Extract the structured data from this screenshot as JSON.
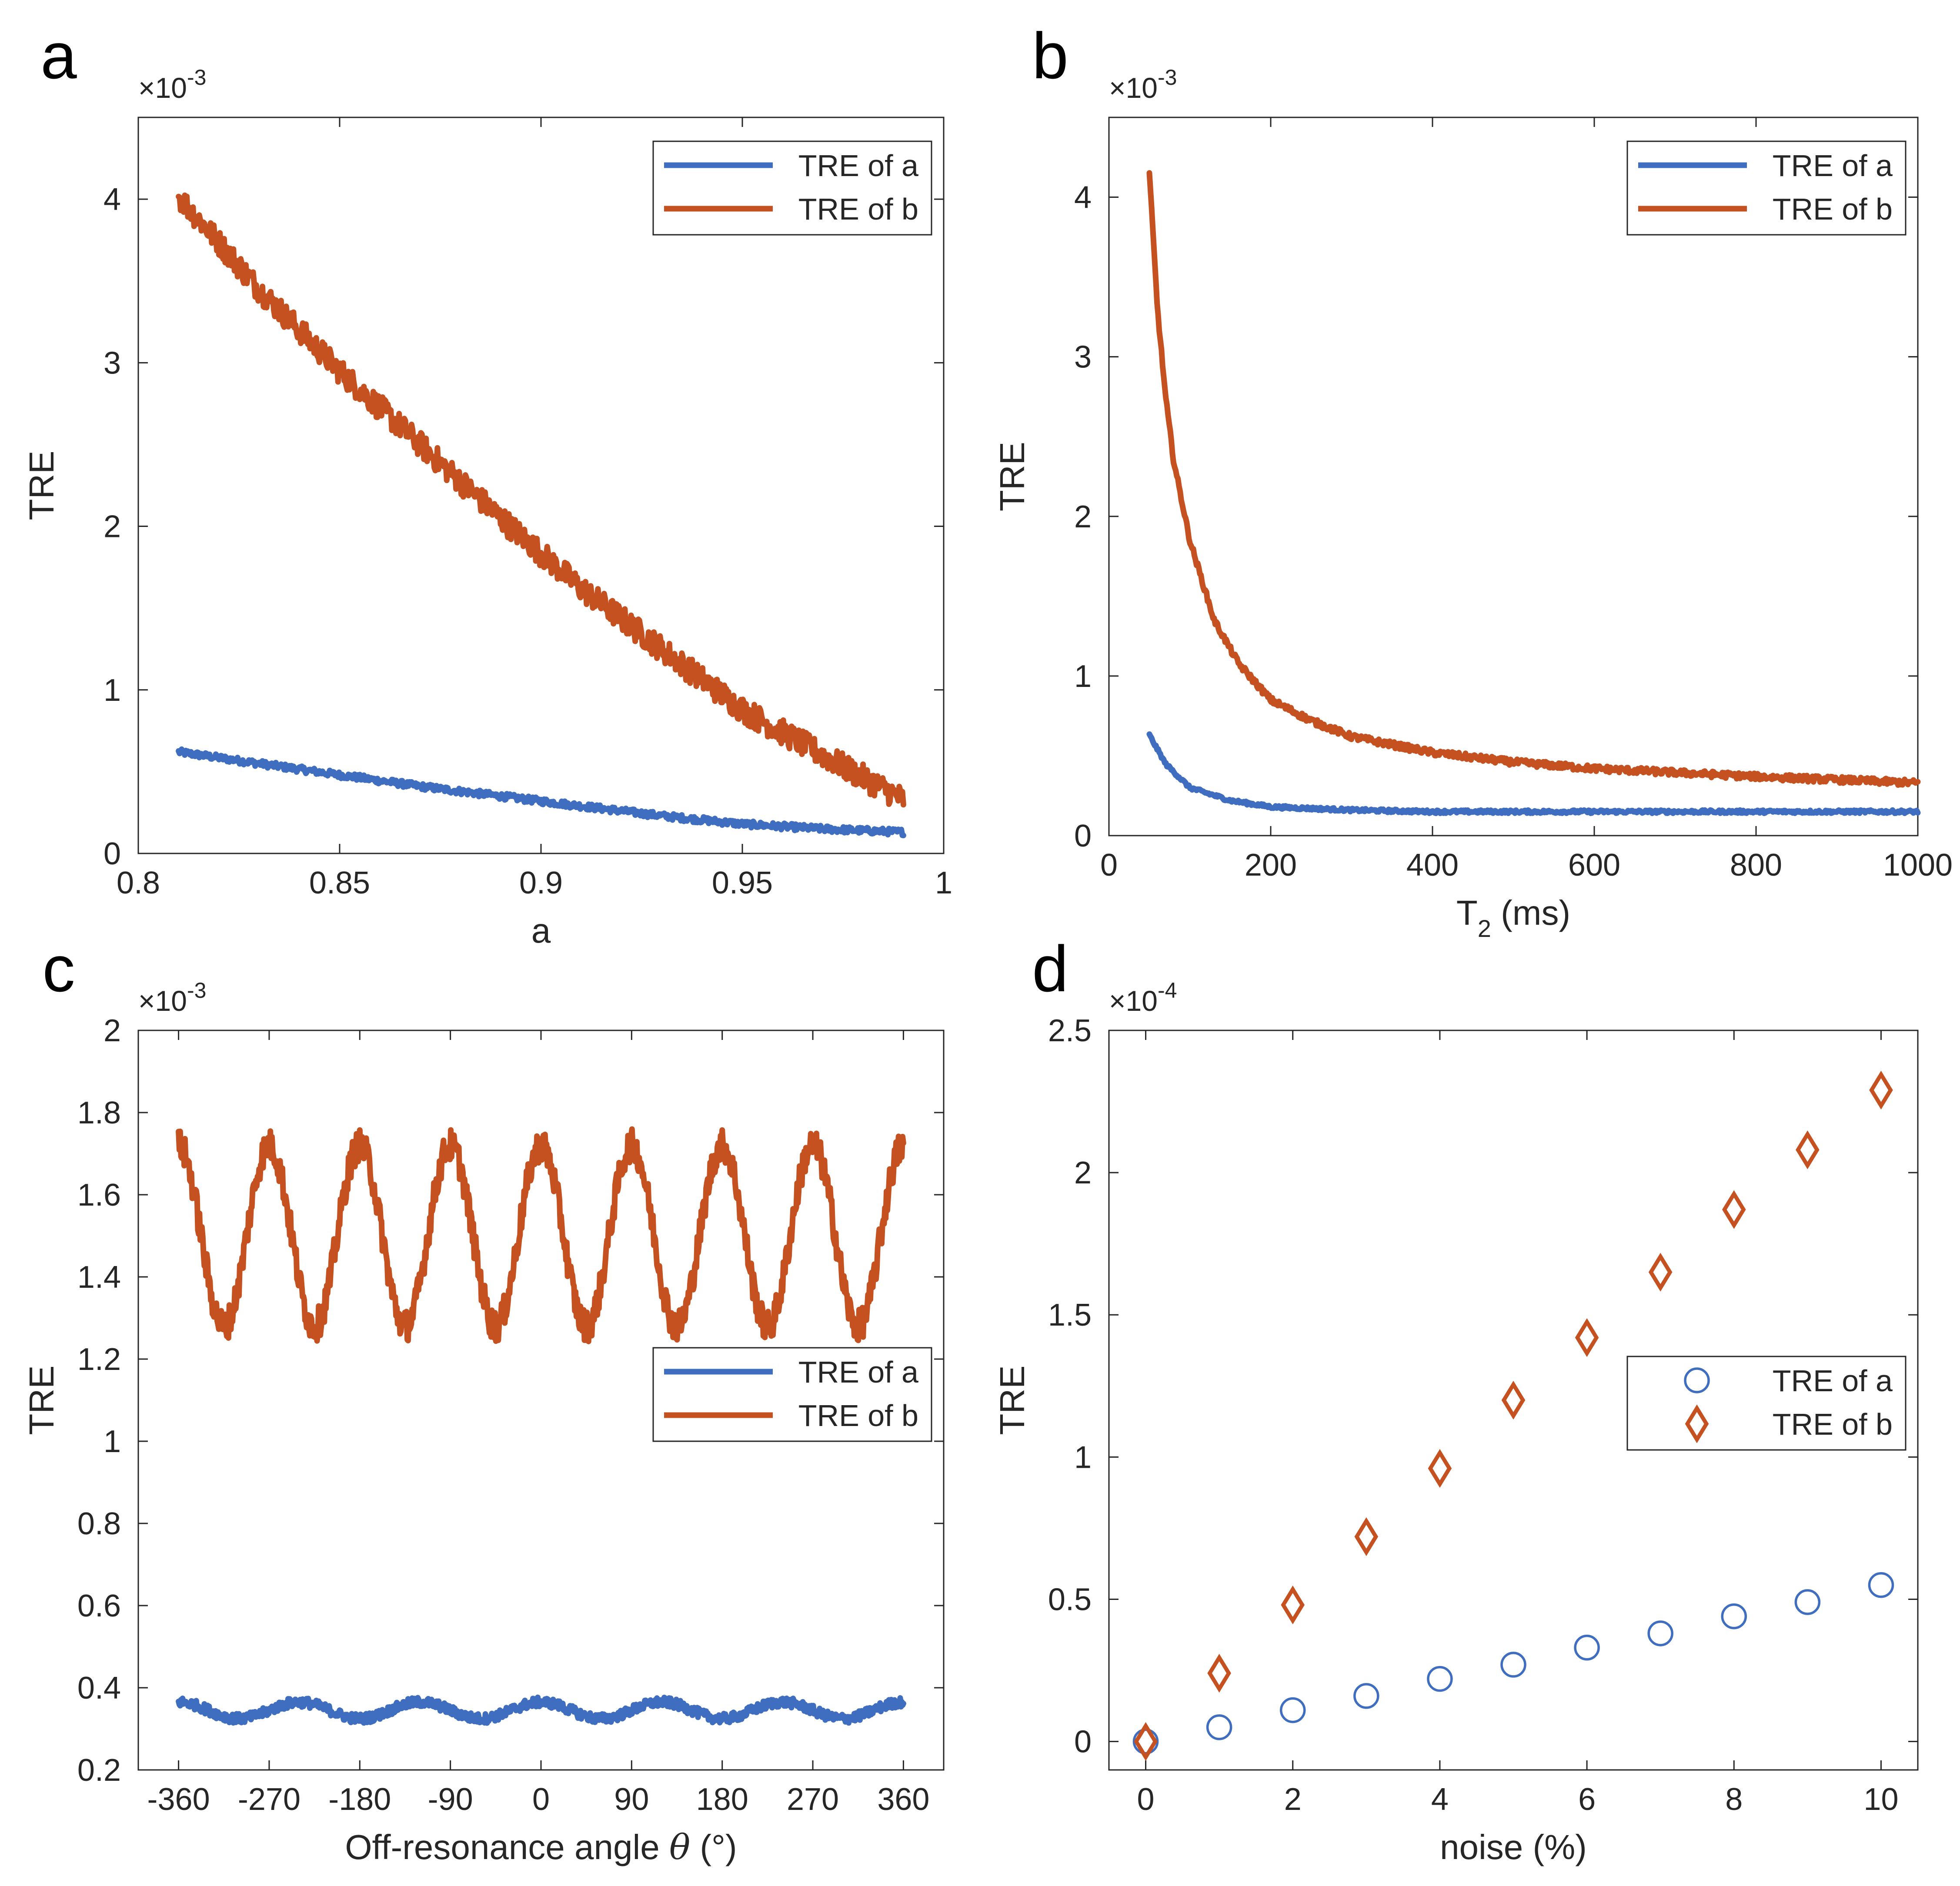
{
  "colors": {
    "series_a": "#3F6DBF",
    "series_b": "#C4511F",
    "axis": "#262626"
  },
  "chart_data": [
    {
      "panel": "a",
      "type": "line",
      "xlabel": "a",
      "ylabel": "TRE",
      "exponent_base": "×10",
      "exponent_power": "-3",
      "xlim": [
        0.8,
        1.0
      ],
      "ylim": [
        0,
        4.5
      ],
      "xticks": [
        0.8,
        0.85,
        0.9,
        0.95,
        1
      ],
      "xtick_labels": [
        "0.8",
        "0.85",
        "0.9",
        "0.95",
        "1"
      ],
      "yticks": [
        0,
        1,
        2,
        3,
        4
      ],
      "ytick_labels": [
        "0",
        "1",
        "2",
        "3",
        "4"
      ],
      "legend_position": "top-right",
      "legend": [
        "TRE of a",
        "TRE of b"
      ],
      "series": [
        {
          "name": "TRE of a",
          "x": [
            0.81,
            0.83,
            0.85,
            0.87,
            0.89,
            0.91,
            0.93,
            0.95,
            0.97,
            0.99
          ],
          "values": [
            0.62,
            0.55,
            0.48,
            0.41,
            0.35,
            0.29,
            0.23,
            0.18,
            0.15,
            0.13
          ],
          "noise": 0.02
        },
        {
          "name": "TRE of b",
          "x": [
            0.81,
            0.83,
            0.85,
            0.87,
            0.89,
            0.91,
            0.93,
            0.95,
            0.97,
            0.99
          ],
          "values": [
            4.02,
            3.45,
            2.95,
            2.5,
            2.05,
            1.62,
            1.25,
            0.88,
            0.6,
            0.33
          ],
          "noise": 0.08
        }
      ]
    },
    {
      "panel": "b",
      "type": "line",
      "xlabel": "T",
      "xlabel_sub": "2",
      "xlabel_suffix": " (ms)",
      "ylabel": "TRE",
      "exponent_base": "×10",
      "exponent_power": "-3",
      "xlim": [
        0,
        1000
      ],
      "ylim": [
        0,
        4.5
      ],
      "xticks": [
        0,
        200,
        400,
        600,
        800,
        1000
      ],
      "xtick_labels": [
        "0",
        "200",
        "400",
        "600",
        "800",
        "1000"
      ],
      "yticks": [
        0,
        1,
        2,
        3,
        4
      ],
      "ytick_labels": [
        "0",
        "1",
        "2",
        "3",
        "4"
      ],
      "legend_position": "top-right",
      "legend": [
        "TRE of a",
        "TRE of b"
      ],
      "series": [
        {
          "name": "TRE of a",
          "x": [
            50,
            70,
            100,
            150,
            200,
            300,
            400,
            600,
            800,
            1000
          ],
          "values": [
            0.63,
            0.45,
            0.3,
            0.22,
            0.18,
            0.16,
            0.15,
            0.15,
            0.15,
            0.15
          ],
          "noise": 0.01
        },
        {
          "name": "TRE of b",
          "x": [
            50,
            60,
            70,
            80,
            100,
            130,
            160,
            200,
            250,
            300,
            400,
            500,
            600,
            800,
            1000
          ],
          "values": [
            4.15,
            3.3,
            2.75,
            2.35,
            1.85,
            1.35,
            1.08,
            0.85,
            0.72,
            0.62,
            0.52,
            0.46,
            0.42,
            0.37,
            0.33
          ],
          "noise": 0.02
        }
      ]
    },
    {
      "panel": "c",
      "type": "line",
      "xlabel": "Off-resonance angle ",
      "xlabel_symbol": "θ",
      "xlabel_suffix": " (°)",
      "ylabel": "TRE",
      "exponent_base": "×10",
      "exponent_power": "-3",
      "xlim": [
        -400,
        400
      ],
      "ylim": [
        0.2,
        2.0
      ],
      "xticks": [
        -360,
        -270,
        -180,
        -90,
        0,
        90,
        180,
        270,
        360
      ],
      "xtick_labels": [
        "-360",
        "-270",
        "-180",
        "-90",
        "0",
        "90",
        "180",
        "270",
        "360"
      ],
      "yticks": [
        0.2,
        0.4,
        0.6,
        0.8,
        1,
        1.2,
        1.4,
        1.6,
        1.8,
        2
      ],
      "ytick_labels": [
        "0.2",
        "0.4",
        "0.6",
        "0.8",
        "1",
        "1.2",
        "1.4",
        "1.6",
        "1.8",
        "2"
      ],
      "legend_position": "middle-right",
      "legend": [
        "TRE of a",
        "TRE of b"
      ],
      "series": [
        {
          "name": "TRE of a",
          "x_range": [
            -360,
            360
          ],
          "mean": 0.345,
          "amplitude": 0.02,
          "period": 120,
          "noise": 0.012
        },
        {
          "name": "TRE of b",
          "x_range": [
            -360,
            360
          ],
          "mean": 1.5,
          "amplitude": 0.22,
          "period": 90,
          "noise": 0.04
        }
      ]
    },
    {
      "panel": "d",
      "type": "scatter",
      "xlabel": "noise (%)",
      "ylabel": "TRE",
      "exponent_base": "×10",
      "exponent_power": "-4",
      "xlim": [
        -0.5,
        10.5
      ],
      "ylim": [
        -0.1,
        2.5
      ],
      "xticks": [
        0,
        2,
        4,
        6,
        8,
        10
      ],
      "xtick_labels": [
        "0",
        "2",
        "4",
        "6",
        "8",
        "10"
      ],
      "yticks": [
        0,
        0.5,
        1,
        1.5,
        2,
        2.5
      ],
      "ytick_labels": [
        "0",
        "0.5",
        "1",
        "1.5",
        "2",
        "2.5"
      ],
      "legend_position": "middle-right",
      "legend": [
        "TRE of a",
        "TRE of b"
      ],
      "series": [
        {
          "name": "TRE of a",
          "marker": "circle",
          "x": [
            0,
            1,
            2,
            3,
            4,
            5,
            6,
            7,
            8,
            9,
            10
          ],
          "values": [
            0,
            0.05,
            0.11,
            0.16,
            0.22,
            0.27,
            0.33,
            0.38,
            0.44,
            0.49,
            0.55
          ]
        },
        {
          "name": "TRE of b",
          "marker": "diamond",
          "x": [
            0,
            1,
            2,
            3,
            4,
            5,
            6,
            7,
            8,
            9,
            10
          ],
          "values": [
            0,
            0.24,
            0.48,
            0.72,
            0.96,
            1.2,
            1.42,
            1.65,
            1.87,
            2.08,
            2.29
          ]
        }
      ]
    }
  ]
}
